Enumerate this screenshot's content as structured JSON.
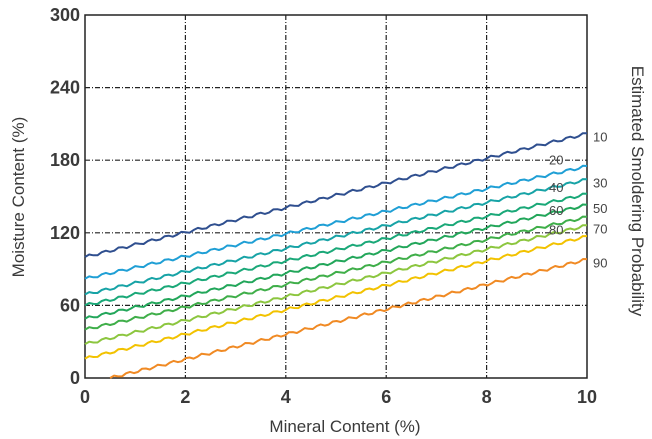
{
  "chart_data": {
    "type": "line",
    "xlabel": "Mineral Content (%)",
    "ylabel": "Moisture Content (%)",
    "right_label": "Estimated Smoldering Probability",
    "xlim": [
      0,
      10
    ],
    "ylim": [
      0,
      300
    ],
    "xticks": [
      "0",
      "2",
      "4",
      "6",
      "8",
      "10"
    ],
    "yticks": [
      "0",
      "60",
      "120",
      "180",
      "240",
      "300"
    ],
    "grid": true,
    "series": [
      {
        "name": "10",
        "color": "#2f4f8f",
        "x": [
          0,
          10
        ],
        "y": [
          100,
          202
        ]
      },
      {
        "name": "20",
        "color": "#1f9fd5",
        "x": [
          0,
          10
        ],
        "y": [
          82,
          175
        ]
      },
      {
        "name": "30",
        "color": "#17a3a6",
        "x": [
          0,
          10
        ],
        "y": [
          69,
          164
        ]
      },
      {
        "name": "40",
        "color": "#1aa878",
        "x": [
          0,
          10
        ],
        "y": [
          60,
          152
        ]
      },
      {
        "name": "50",
        "color": "#22a65a",
        "x": [
          0,
          10
        ],
        "y": [
          49,
          143
        ]
      },
      {
        "name": "60",
        "color": "#3fae49",
        "x": [
          0,
          10
        ],
        "y": [
          40,
          133
        ]
      },
      {
        "name": "70",
        "color": "#8cc63f",
        "x": [
          0,
          10
        ],
        "y": [
          28,
          126
        ]
      },
      {
        "name": "80",
        "color": "#f2c200",
        "x": [
          0,
          10
        ],
        "y": [
          16,
          117
        ]
      },
      {
        "name": "90",
        "color": "#f08a24",
        "x": [
          0.5,
          10
        ],
        "y": [
          0,
          98
        ]
      }
    ],
    "series_labels": [
      {
        "text": "10",
        "side": "right",
        "series": 0
      },
      {
        "text": "20",
        "side": "inside",
        "series": 1
      },
      {
        "text": "30",
        "side": "right",
        "series": 2
      },
      {
        "text": "40",
        "side": "inside",
        "series": 3
      },
      {
        "text": "50",
        "side": "right",
        "series": 4
      },
      {
        "text": "60",
        "side": "inside",
        "series": 5
      },
      {
        "text": "70",
        "side": "right",
        "series": 6
      },
      {
        "text": "80",
        "side": "inside",
        "series": 7
      },
      {
        "text": "90",
        "side": "right",
        "series": 8
      }
    ]
  }
}
